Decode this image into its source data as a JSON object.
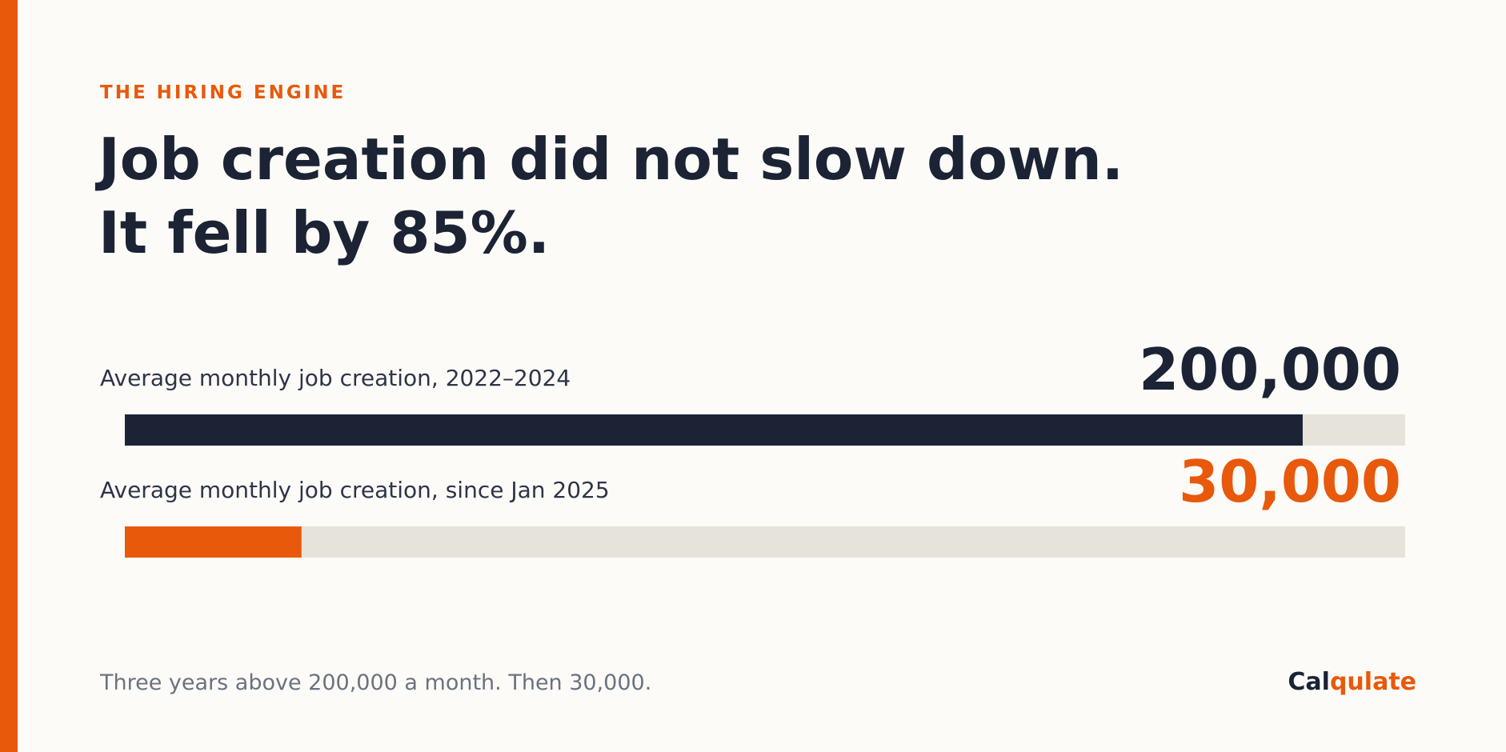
{
  "chart_data": {
    "type": "bar",
    "orientation": "horizontal",
    "kicker": "THE HIRING ENGINE",
    "title": [
      "Job creation did not slow down.",
      "It fell by 85%."
    ],
    "categories": [
      "Average monthly job creation, 2022–2024",
      "Average monthly job creation, since Jan 2025"
    ],
    "values": [
      200000,
      30000
    ],
    "value_labels": [
      "200,000",
      "30,000"
    ],
    "colors": [
      "#1b2335",
      "#e8590c"
    ],
    "track_color": "#e6e3db",
    "xlim": [
      0,
      217400
    ],
    "footnote": "Three years above 200,000 a month. Then 30,000.",
    "brand": [
      "Cal",
      "qulate"
    ]
  }
}
